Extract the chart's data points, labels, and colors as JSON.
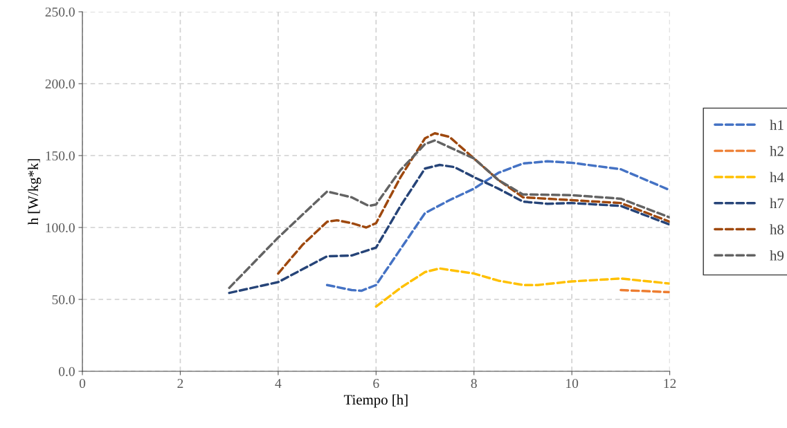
{
  "chart_data": {
    "type": "line",
    "xlabel": "Tiempo [h]",
    "ylabel": "h [W/kg*k]",
    "xlim": [
      0,
      12
    ],
    "xticks": [
      0,
      2,
      4,
      6,
      8,
      10,
      12
    ],
    "ylim": [
      0,
      250
    ],
    "yticks": [
      {
        "value": 0,
        "label": "0.0"
      },
      {
        "value": 50,
        "label": "50.0"
      },
      {
        "value": 100,
        "label": "100.0"
      },
      {
        "value": 150,
        "label": "150.0"
      },
      {
        "value": 200,
        "label": "200.0"
      },
      {
        "value": 250,
        "label": "250.0"
      }
    ],
    "grid": true,
    "legend": "right",
    "marker": "none",
    "line_style": "dashed",
    "series": [
      {
        "name": "h1",
        "color": "#4472c4",
        "x": [
          5,
          5.5,
          5.7,
          6,
          6.5,
          7,
          7.5,
          8,
          8.5,
          9,
          9.5,
          10,
          11,
          12
        ],
        "values": [
          60,
          56.5,
          56,
          60,
          85,
          110,
          119,
          127,
          138,
          144.5,
          146,
          145,
          140.5,
          126
        ]
      },
      {
        "name": "h2",
        "color": "#ed7d31",
        "x": [
          11,
          12
        ],
        "values": [
          56.5,
          55
        ]
      },
      {
        "name": "h4",
        "color": "#ffc000",
        "x": [
          6,
          6.5,
          7,
          7.3,
          8,
          8.5,
          9,
          9.3,
          10,
          11,
          12
        ],
        "values": [
          45,
          58,
          69,
          71.5,
          68,
          63,
          60,
          60,
          62.5,
          64.5,
          61
        ]
      },
      {
        "name": "h7",
        "color": "#264478",
        "x": [
          3,
          4,
          4.5,
          5,
          5.5,
          6,
          6.5,
          7,
          7.3,
          7.6,
          8,
          8.5,
          9,
          9.5,
          10,
          11,
          12
        ],
        "values": [
          54.5,
          62,
          71,
          80,
          80.5,
          86,
          115,
          141,
          143.5,
          142,
          135,
          127,
          118,
          116.5,
          117,
          115,
          102
        ]
      },
      {
        "name": "h8",
        "color": "#9e480e",
        "x": [
          4,
          4.5,
          5,
          5.2,
          5.5,
          5.8,
          6,
          6.5,
          7,
          7.2,
          7.5,
          8,
          8.5,
          9,
          10,
          11,
          12
        ],
        "values": [
          68,
          88,
          104,
          105,
          103,
          100,
          103,
          135,
          162,
          165.5,
          163,
          148,
          133,
          121,
          119,
          117,
          104
        ]
      },
      {
        "name": "h9",
        "color": "#636363",
        "x": [
          3,
          4,
          5,
          5.5,
          5.85,
          6,
          6.5,
          7,
          7.2,
          8,
          8.5,
          9,
          10,
          11,
          12
        ],
        "values": [
          58,
          93,
          125,
          121,
          115,
          116,
          140,
          158,
          160.5,
          148,
          133,
          123,
          122.5,
          120,
          107
        ]
      }
    ]
  }
}
